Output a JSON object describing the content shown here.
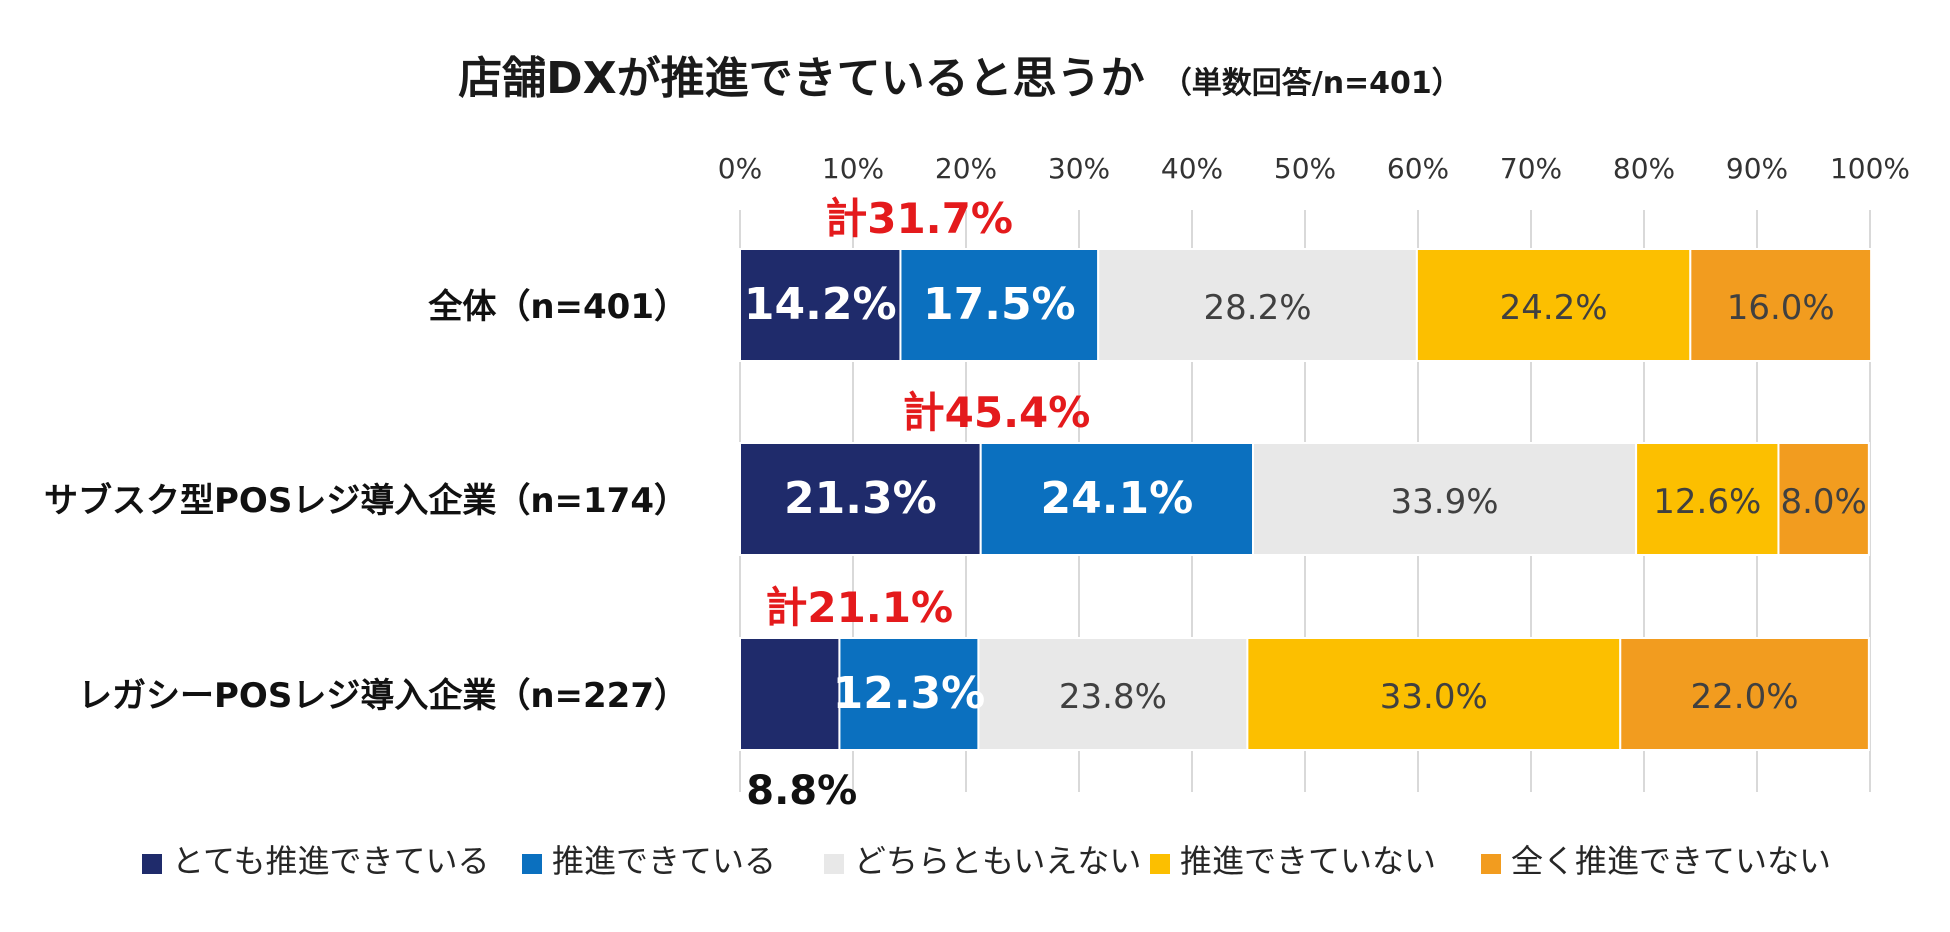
{
  "title": {
    "main": "店舗DXが推進できていると思うか",
    "sub": "（単数回答/n=401）"
  },
  "chart_data": {
    "type": "bar",
    "orientation": "horizontal-stacked-100",
    "title": "店舗DXが推進できていると思うか（単数回答/n=401）",
    "xlabel": "",
    "ylabel": "",
    "xlim": [
      0,
      100
    ],
    "x_ticks": [
      "0%",
      "10%",
      "20%",
      "30%",
      "40%",
      "50%",
      "60%",
      "70%",
      "80%",
      "90%",
      "100%"
    ],
    "grid": true,
    "legend_position": "bottom",
    "categories": [
      "全体（n=401）",
      "サブスク型POSレジ導入企業（n=174）",
      "レガシーPOSレジ導入企業（n=227）"
    ],
    "series": [
      {
        "name": "とても推進できている",
        "color": "#1f2b6b",
        "values": [
          14.2,
          21.3,
          8.8
        ],
        "labels": [
          "14.2%",
          "21.3%",
          "8.8%"
        ]
      },
      {
        "name": "推進できている",
        "color": "#0b70bf",
        "values": [
          17.5,
          24.1,
          12.3
        ],
        "labels": [
          "17.5%",
          "24.1%",
          "12.3%"
        ]
      },
      {
        "name": "どちらともいえない",
        "color": "#e8e8e8",
        "values": [
          28.2,
          33.9,
          23.8
        ],
        "labels": [
          "28.2%",
          "33.9%",
          "23.8%"
        ]
      },
      {
        "name": "推進できていない",
        "color": "#fcbf00",
        "values": [
          24.2,
          12.6,
          33.0
        ],
        "labels": [
          "24.2%",
          "12.6%",
          "33.0%"
        ]
      },
      {
        "name": "全く推進できていない",
        "color": "#f29c1f",
        "values": [
          16.0,
          8.0,
          22.0
        ],
        "labels": [
          "16.0%",
          "8.0%",
          "22.0%"
        ]
      }
    ],
    "annotations": [
      {
        "text": "計31.7%",
        "row": 0,
        "color": "#e41a1c"
      },
      {
        "text": "計45.4%",
        "row": 1,
        "color": "#e41a1c"
      },
      {
        "text": "計21.1%",
        "row": 2,
        "color": "#e41a1c"
      }
    ]
  }
}
